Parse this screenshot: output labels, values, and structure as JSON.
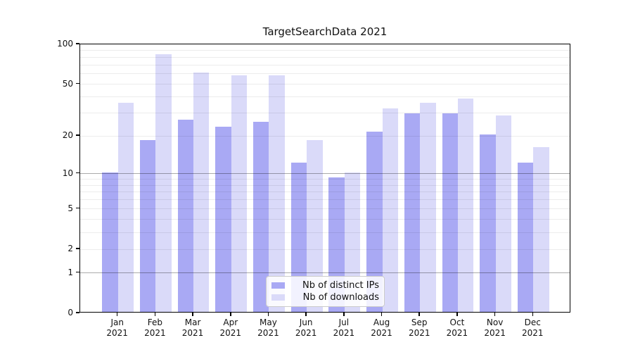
{
  "chart_data": {
    "type": "bar",
    "title": "TargetSearchData 2021",
    "categories": [
      "Jan",
      "Feb",
      "Mar",
      "Apr",
      "May",
      "Jun",
      "Jul",
      "Aug",
      "Sep",
      "Oct",
      "Nov",
      "Dec"
    ],
    "category_year": "2021",
    "series": [
      {
        "name": "Nb of distinct IPs",
        "color": "#a9a9f4",
        "values": [
          10,
          18,
          26,
          23,
          25,
          12,
          9,
          21,
          29,
          29,
          20,
          12
        ]
      },
      {
        "name": "Nb of downloads",
        "color": "#dadaf9",
        "values": [
          35,
          82,
          60,
          57,
          57,
          18,
          10,
          32,
          35,
          38,
          28,
          16
        ]
      }
    ],
    "y_axis": {
      "scale": "log1p",
      "ylim": [
        0,
        100
      ],
      "ticks": [
        0,
        1,
        2,
        5,
        10,
        20,
        50,
        100
      ],
      "minor_gridlines": [
        3,
        4,
        6,
        7,
        8,
        9,
        30,
        40,
        60,
        70,
        80,
        90
      ],
      "decade_gridlines": [
        1,
        10
      ]
    },
    "legend": {
      "position": "lower-center"
    },
    "style": {
      "minor_grid_color": "rgba(0,0,0,0.075)",
      "decade_grid_color": "rgba(0,0,0,0.33)",
      "spine_color": "#000000",
      "background": "#ffffff"
    }
  }
}
